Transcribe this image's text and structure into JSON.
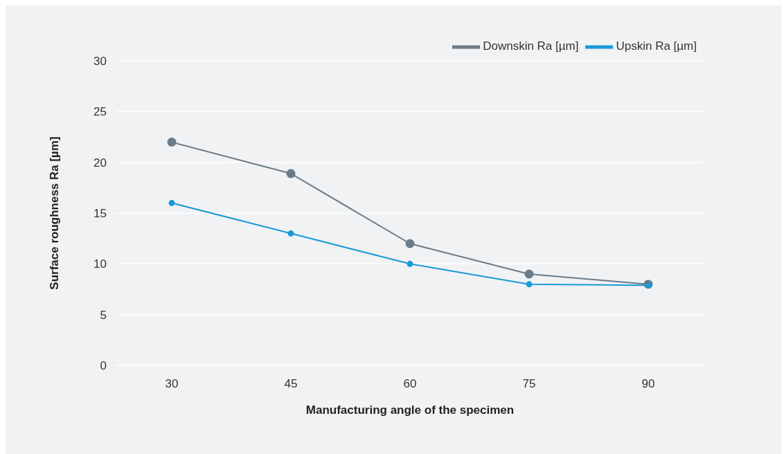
{
  "chart_data": {
    "type": "line",
    "xlabel": "Manufacturing angle of the specimen",
    "ylabel": "Surface roughness Ra [µm]",
    "categories": [
      "30",
      "45",
      "60",
      "75",
      "90"
    ],
    "series": [
      {
        "name": "Downskin Ra [µm]",
        "color": "#6b7b87",
        "values": [
          22,
          18.9,
          12,
          9,
          8
        ]
      },
      {
        "name": "Upskin Ra [µm]",
        "color": "#1a9ad6",
        "values": [
          16,
          13,
          10,
          8,
          7.9
        ]
      }
    ],
    "ylim": [
      0,
      30
    ],
    "yticks": [
      0,
      5,
      10,
      15,
      20,
      25,
      30
    ],
    "grid": "y",
    "legend": "top right",
    "marker": "circle",
    "line_style": "solid"
  }
}
